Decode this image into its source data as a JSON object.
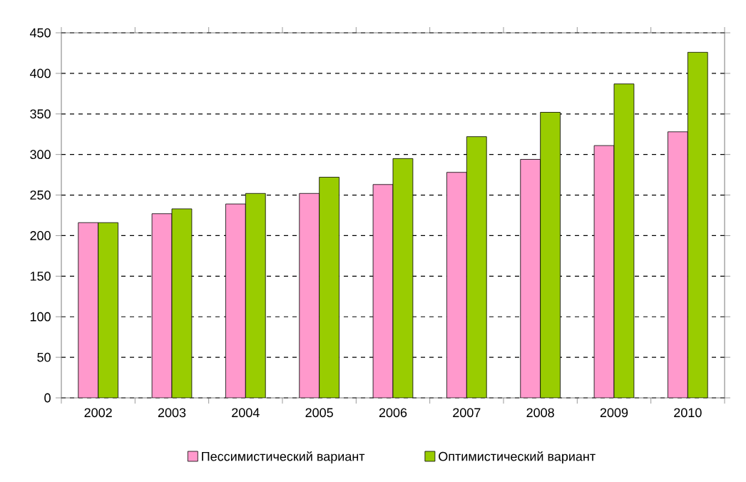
{
  "chart_data": {
    "type": "bar",
    "categories": [
      "2002",
      "2003",
      "2004",
      "2005",
      "2006",
      "2007",
      "2008",
      "2009",
      "2010"
    ],
    "series": [
      {
        "name": "Пессимистический вариант",
        "color": "#ff99cc",
        "values": [
          216,
          227,
          239,
          252,
          263,
          278,
          294,
          311,
          328
        ]
      },
      {
        "name": "Оптимистический вариант",
        "color": "#99cc00",
        "values": [
          216,
          233,
          252,
          272,
          295,
          322,
          352,
          387,
          426
        ]
      }
    ],
    "ylim": [
      0,
      450
    ],
    "yticks": [
      0,
      50,
      100,
      150,
      200,
      250,
      300,
      350,
      400,
      450
    ],
    "grid": "y",
    "legend": "bottom"
  }
}
